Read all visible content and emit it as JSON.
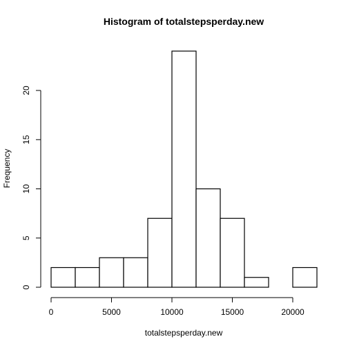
{
  "chart_data": {
    "type": "bar",
    "subtype": "histogram",
    "title": "Histogram of totalstepsperday.new",
    "xlabel": "totalstepsperday.new",
    "ylabel": "Frequency",
    "bins": [
      {
        "start": 0,
        "end": 2000,
        "count": 2
      },
      {
        "start": 2000,
        "end": 4000,
        "count": 2
      },
      {
        "start": 4000,
        "end": 6000,
        "count": 3
      },
      {
        "start": 6000,
        "end": 8000,
        "count": 3
      },
      {
        "start": 8000,
        "end": 10000,
        "count": 7
      },
      {
        "start": 10000,
        "end": 12000,
        "count": 24
      },
      {
        "start": 12000,
        "end": 14000,
        "count": 10
      },
      {
        "start": 14000,
        "end": 16000,
        "count": 7
      },
      {
        "start": 16000,
        "end": 18000,
        "count": 1
      },
      {
        "start": 18000,
        "end": 20000,
        "count": 0
      },
      {
        "start": 20000,
        "end": 22000,
        "count": 2
      }
    ],
    "xlim": [
      0,
      22000
    ],
    "ylim": [
      0,
      24
    ],
    "xticks": [
      0,
      5000,
      10000,
      15000,
      20000
    ],
    "xtick_labels": [
      "0",
      "5000",
      "10000",
      "15000",
      "20000"
    ],
    "yticks": [
      0,
      5,
      10,
      15,
      20
    ],
    "ytick_labels": [
      "0",
      "5",
      "10",
      "15",
      "20"
    ],
    "grid": false,
    "bar_fill": "#ffffff",
    "bar_stroke": "#000000"
  }
}
